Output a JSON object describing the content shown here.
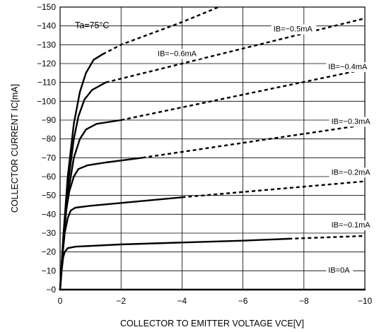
{
  "chart_data": {
    "type": "line",
    "title": "",
    "xlabel": "COLLECTOR TO EMITTER VOLTAGE VCE[V]",
    "ylabel": "COLLECTOR CURRENT IC[mA]",
    "xlim": [
      0,
      -10
    ],
    "ylim": [
      0,
      -150
    ],
    "xticks": [
      "0",
      "−2",
      "−4",
      "−6",
      "−8",
      "−10"
    ],
    "xtick_values": [
      0,
      -2,
      -4,
      -6,
      -8,
      -10
    ],
    "yticks": [
      "−0",
      "−10",
      "−20",
      "−30",
      "−40",
      "−50",
      "−60",
      "−70",
      "−80",
      "−90",
      "−100",
      "−110",
      "−120",
      "−130",
      "−140",
      "−150"
    ],
    "ytick_values": [
      0,
      -10,
      -20,
      -30,
      -40,
      -50,
      -60,
      -70,
      -80,
      -90,
      -100,
      -110,
      -120,
      -130,
      -140,
      -150
    ],
    "grid": true,
    "annotation": "Ta=75°C",
    "series": [
      {
        "name": "IB=−0.1mA",
        "solid": [
          [
            0,
            0
          ],
          [
            -0.05,
            -10
          ],
          [
            -0.1,
            -17
          ],
          [
            -0.15,
            -20
          ],
          [
            -0.25,
            -22
          ],
          [
            -0.5,
            -22.8
          ],
          [
            -2,
            -24
          ],
          [
            -4,
            -25
          ],
          [
            -6,
            -26
          ],
          [
            -7.5,
            -27
          ]
        ],
        "dashed": [
          [
            -7.5,
            -27
          ],
          [
            -10,
            -28.5
          ]
        ]
      },
      {
        "name": "IB=−0.2mA",
        "solid": [
          [
            0,
            0
          ],
          [
            -0.08,
            -18
          ],
          [
            -0.15,
            -30
          ],
          [
            -0.25,
            -38
          ],
          [
            -0.35,
            -42
          ],
          [
            -0.5,
            -43.5
          ],
          [
            -1,
            -44.5
          ],
          [
            -2,
            -46
          ],
          [
            -4,
            -49
          ]
        ],
        "dashed": [
          [
            -4,
            -49
          ],
          [
            -10,
            -57.5
          ]
        ]
      },
      {
        "name": "IB=−0.3mA",
        "solid": [
          [
            0,
            0
          ],
          [
            -0.08,
            -20
          ],
          [
            -0.18,
            -40
          ],
          [
            -0.3,
            -52
          ],
          [
            -0.45,
            -60
          ],
          [
            -0.6,
            -64
          ],
          [
            -0.9,
            -66
          ],
          [
            -1.5,
            -67.5
          ],
          [
            -2.7,
            -70
          ]
        ],
        "dashed": [
          [
            -2.7,
            -70
          ],
          [
            -10,
            -87.5
          ]
        ]
      },
      {
        "name": "IB=−0.4mA",
        "solid": [
          [
            0,
            0
          ],
          [
            -0.1,
            -25
          ],
          [
            -0.25,
            -50
          ],
          [
            -0.45,
            -70
          ],
          [
            -0.65,
            -80
          ],
          [
            -0.85,
            -85
          ],
          [
            -1.2,
            -88
          ],
          [
            -2,
            -90
          ]
        ],
        "dashed": [
          [
            -2,
            -90
          ],
          [
            -10,
            -117
          ]
        ]
      },
      {
        "name": "IB=−0.5mA",
        "solid": [
          [
            0,
            0
          ],
          [
            -0.1,
            -25
          ],
          [
            -0.25,
            -55
          ],
          [
            -0.45,
            -80
          ],
          [
            -0.6,
            -92
          ],
          [
            -0.8,
            -101
          ],
          [
            -1.05,
            -106
          ],
          [
            -1.5,
            -110
          ]
        ],
        "dashed": [
          [
            -1.5,
            -110
          ],
          [
            -10,
            -144
          ]
        ]
      },
      {
        "name": "IB=−0.6mA",
        "solid": [
          [
            0,
            0
          ],
          [
            -0.1,
            -27
          ],
          [
            -0.25,
            -60
          ],
          [
            -0.45,
            -88
          ],
          [
            -0.65,
            -105
          ],
          [
            -0.85,
            -115
          ],
          [
            -1.1,
            -122
          ],
          [
            -1.4,
            -125
          ]
        ],
        "dashed": [
          [
            -1.4,
            -125
          ],
          [
            -2,
            -130
          ],
          [
            -4,
            -142
          ],
          [
            -5.2,
            -150
          ]
        ]
      },
      {
        "name": "IB=0A",
        "solid": [
          [
            0,
            0
          ],
          [
            -10,
            0
          ]
        ],
        "dashed": []
      }
    ],
    "labels": [
      {
        "text": "IB=−0.6mA",
        "x": -3.2,
        "y": -124
      },
      {
        "text": "IB=−0.5mA",
        "x": -7.0,
        "y": -137
      },
      {
        "text": "IB=−0.4mA",
        "x": -8.8,
        "y": -117
      },
      {
        "text": "IB=−0.3mA",
        "x": -8.9,
        "y": -88
      },
      {
        "text": "IB=−0.2mA",
        "x": -8.9,
        "y": -61
      },
      {
        "text": "IB=−0.1mA",
        "x": -8.9,
        "y": -33
      },
      {
        "text": "IB=0A",
        "x": -8.8,
        "y": -9
      }
    ]
  }
}
